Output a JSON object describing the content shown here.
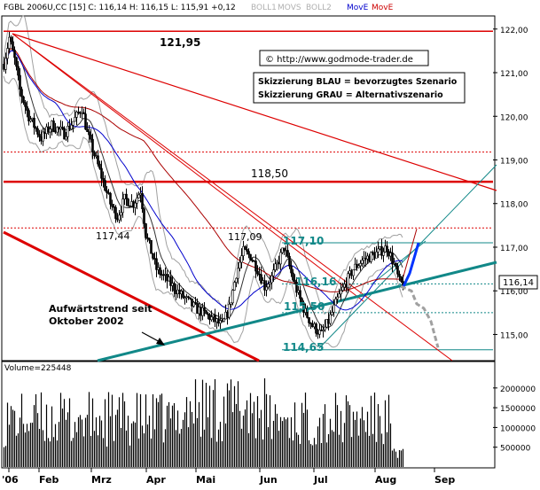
{
  "header": {
    "symbol_line": "FGBL 2006U,CC [15] C: 116,14 H: 116,15 L: 115,91 +0,12",
    "boll1": "BOLL1",
    "movs": "MOVS",
    "boll2": "BOLL2",
    "move_blue": "MovE",
    "move_red": "MovE"
  },
  "colors": {
    "background": "#ffffff",
    "candles": "#000000",
    "bollinger": "#a0a0a0",
    "ma_blue": "#0000cc",
    "ma_red": "#aa0000",
    "resistance_red": "#dd0000",
    "trendline_teal": "#118888",
    "scenario_blue": "#0033ff",
    "scenario_gray": "#a0a0a0",
    "volume": "#000000",
    "grid_label": "#000000"
  },
  "chart_data": {
    "type": "candlestick",
    "instrument": "FGBL 2006U,CC [15]",
    "last_close": "116,14",
    "y_range": [
      114.4,
      122.3
    ],
    "y_ticks": [
      "122,00",
      "121,00",
      "120,00",
      "119,00",
      "118,00",
      "117,00",
      "116,00",
      "115,00"
    ],
    "x_ticks": [
      "'06",
      "Feb",
      "Mrz",
      "Apr",
      "Mai",
      "Jun",
      "Jul",
      "Aug",
      "Sep"
    ],
    "price_labels": [
      "121,95",
      "118,50",
      "117,44",
      "117,09",
      "117,10",
      "116,16",
      "115,50",
      "114,65"
    ],
    "horizontal_levels": [
      {
        "value": 121.95,
        "style": "solid"
      },
      {
        "value": 119.18,
        "style": "dotted"
      },
      {
        "value": 118.5,
        "style": "solid-thick"
      },
      {
        "value": 117.44,
        "style": "dotted"
      },
      {
        "value": 117.1,
        "style": "thin-teal"
      },
      {
        "value": 116.16,
        "style": "dotted-teal"
      },
      {
        "value": 115.5,
        "style": "dotted-teal"
      },
      {
        "value": 114.65,
        "style": "thin-teal"
      }
    ],
    "volume": {
      "label": "Volume=225448",
      "y_ticks": [
        "2000000",
        "1500000",
        "1000000",
        "500000"
      ],
      "y_range": [
        0,
        2400000
      ]
    }
  },
  "annotations": {
    "source": "© http://www.godmode-trader.de",
    "scenario_blue": "Skizzierung BLAU = bevorzugtes Szenario",
    "scenario_gray": "Skizzierung GRAU = Alternativszenario",
    "uptrend_line1": "Aufwärtstrend seit",
    "uptrend_line2": "Oktober 2002"
  }
}
